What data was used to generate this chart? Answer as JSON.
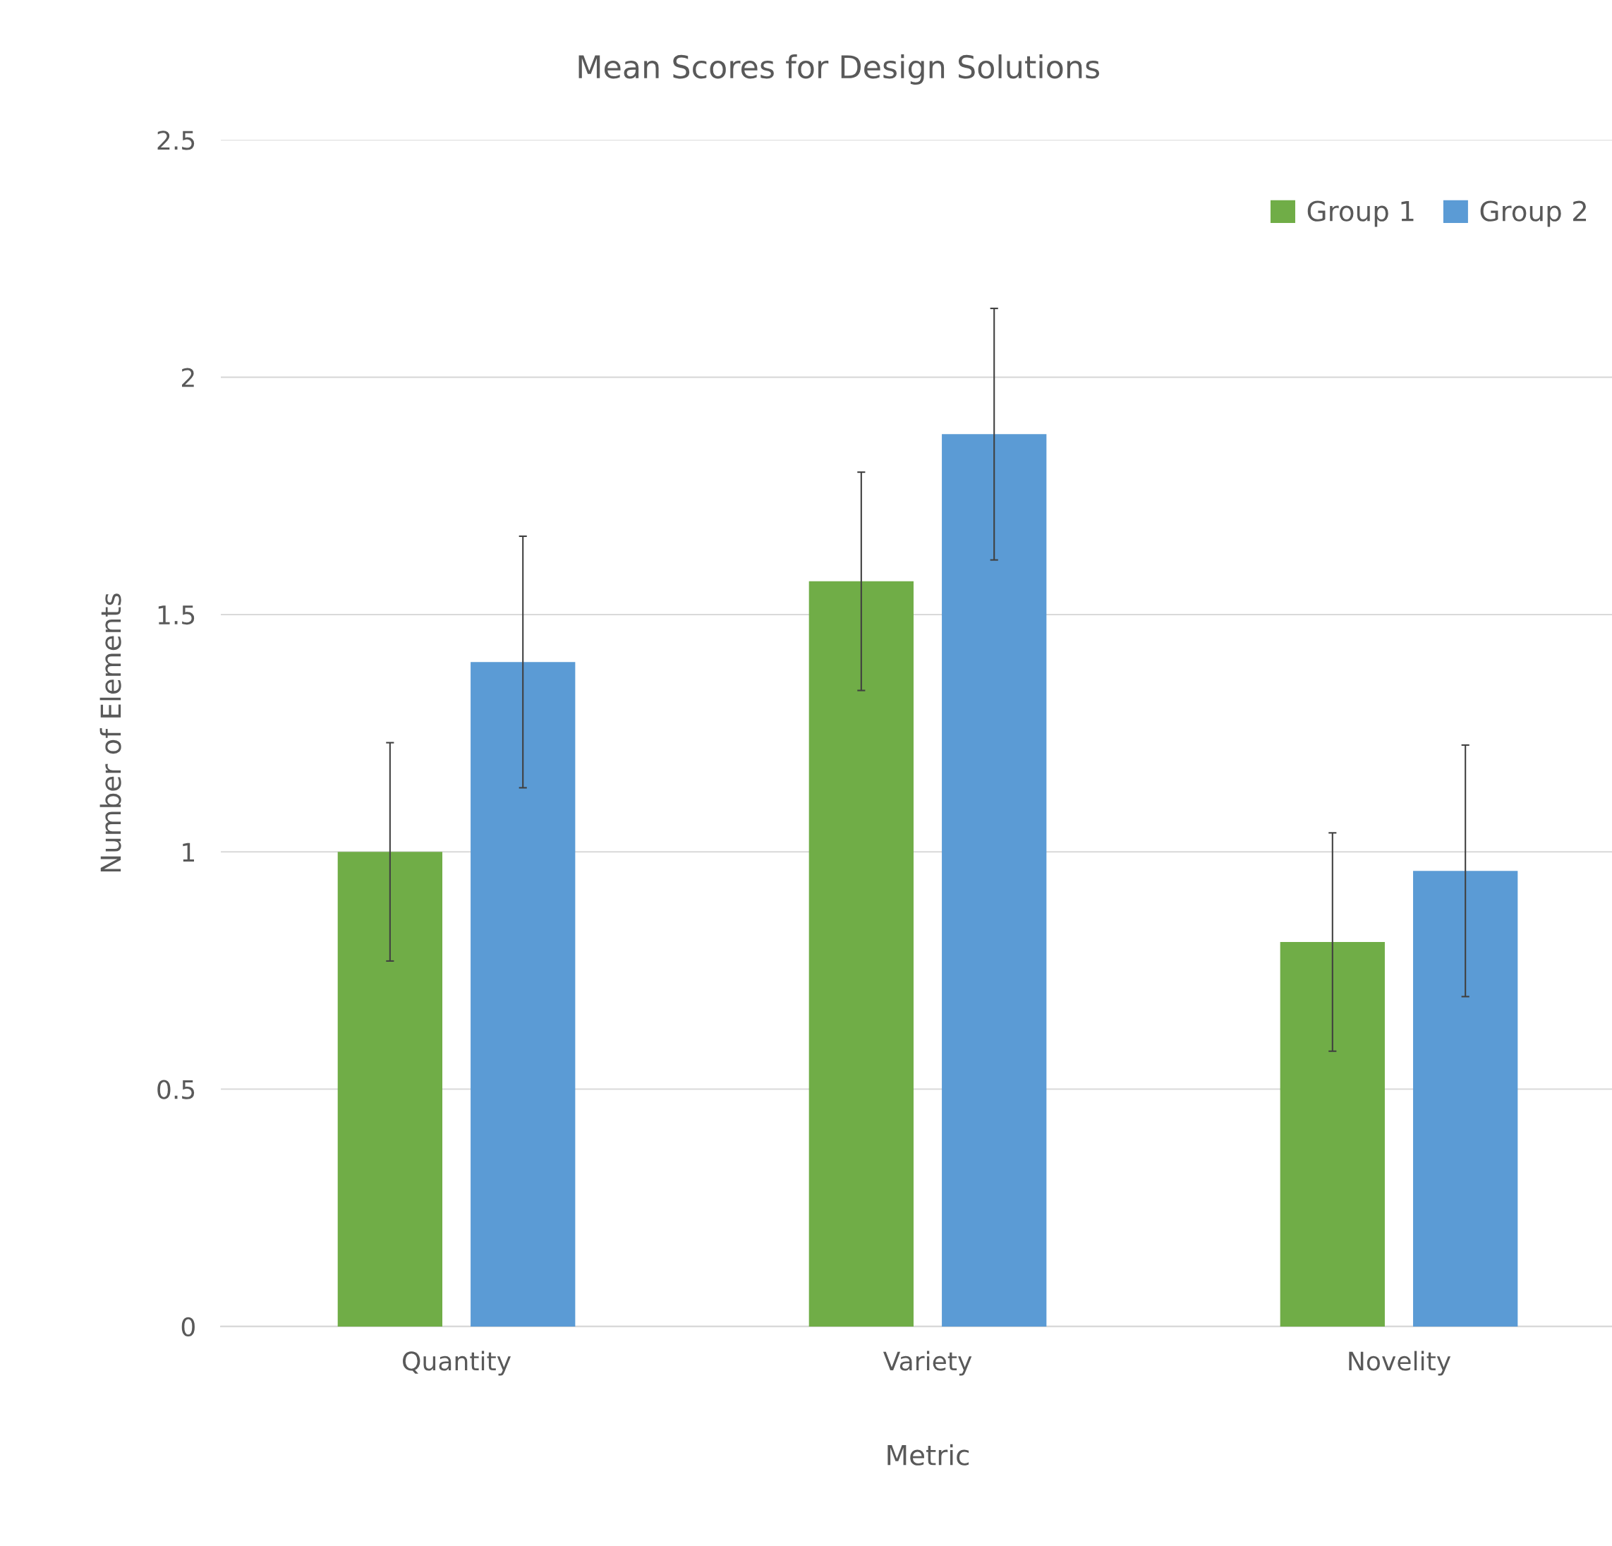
{
  "chart_data": {
    "type": "bar",
    "title": "Mean Scores for Design Solutions",
    "xlabel": "Metric",
    "ylabel": "Number of Elements",
    "categories": [
      "Quantity",
      "Variety",
      "Novelity"
    ],
    "series": [
      {
        "name": "Group 1",
        "color": "#70ad47",
        "values": [
          1.0,
          1.57,
          0.81
        ],
        "errors": [
          0.23,
          0.23,
          0.23
        ]
      },
      {
        "name": "Group 2",
        "color": "#5b9bd5",
        "values": [
          1.4,
          1.88,
          0.96
        ],
        "errors": [
          0.265,
          0.265,
          0.265
        ]
      }
    ],
    "ylim": [
      0,
      2.5
    ],
    "yticks": [
      0,
      0.5,
      1,
      1.5,
      2,
      2.5
    ],
    "grid": "y",
    "legend": "top right"
  }
}
